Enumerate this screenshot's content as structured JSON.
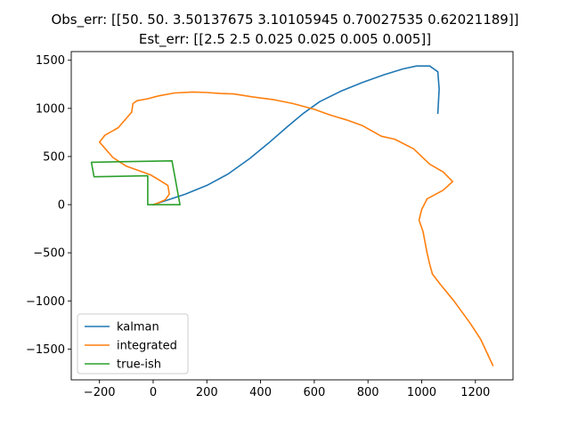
{
  "chart_data": {
    "type": "line",
    "title_lines": [
      "Obs_err: [[50.         50.          3.50137675  3.10105945  0.70027535  0.62021189]]",
      "Est_err: [[2.5   2.5   0.025 0.025 0.005 0.005]]"
    ],
    "xlabel": "",
    "ylabel": "",
    "xlim": [
      -305,
      1340
    ],
    "ylim": [
      -1820,
      1590
    ],
    "x_ticks": [
      -200,
      0,
      200,
      400,
      600,
      800,
      1000,
      1200
    ],
    "y_ticks": [
      -1500,
      -1000,
      -500,
      0,
      500,
      1000,
      1500
    ],
    "legend_position": "lower left",
    "grid": false,
    "series": [
      {
        "name": "kalman",
        "color": "#1f77b4",
        "points": [
          [
            0,
            0
          ],
          [
            50,
            45
          ],
          [
            120,
            110
          ],
          [
            200,
            200
          ],
          [
            280,
            320
          ],
          [
            360,
            480
          ],
          [
            430,
            640
          ],
          [
            500,
            810
          ],
          [
            560,
            950
          ],
          [
            620,
            1070
          ],
          [
            700,
            1180
          ],
          [
            780,
            1270
          ],
          [
            860,
            1350
          ],
          [
            930,
            1410
          ],
          [
            980,
            1440
          ],
          [
            1030,
            1440
          ],
          [
            1060,
            1380
          ],
          [
            1065,
            1200
          ],
          [
            1060,
            950
          ]
        ]
      },
      {
        "name": "integrated",
        "color": "#ff7f0e",
        "points": [
          [
            0,
            0
          ],
          [
            20,
            20
          ],
          [
            45,
            50
          ],
          [
            60,
            110
          ],
          [
            55,
            200
          ],
          [
            20,
            260
          ],
          [
            -10,
            310
          ],
          [
            -40,
            340
          ],
          [
            -100,
            400
          ],
          [
            -150,
            490
          ],
          [
            -200,
            650
          ],
          [
            -180,
            720
          ],
          [
            -130,
            800
          ],
          [
            -80,
            960
          ],
          [
            -75,
            1050
          ],
          [
            -60,
            1080
          ],
          [
            -20,
            1100
          ],
          [
            20,
            1130
          ],
          [
            80,
            1160
          ],
          [
            150,
            1170
          ],
          [
            200,
            1165
          ],
          [
            250,
            1155
          ],
          [
            300,
            1150
          ],
          [
            370,
            1120
          ],
          [
            450,
            1090
          ],
          [
            520,
            1050
          ],
          [
            600,
            990
          ],
          [
            660,
            930
          ],
          [
            720,
            880
          ],
          [
            780,
            820
          ],
          [
            850,
            710
          ],
          [
            900,
            680
          ],
          [
            970,
            580
          ],
          [
            1030,
            420
          ],
          [
            1080,
            340
          ],
          [
            1115,
            240
          ],
          [
            1080,
            150
          ],
          [
            1020,
            60
          ],
          [
            1000,
            -50
          ],
          [
            990,
            -160
          ],
          [
            1005,
            -280
          ],
          [
            1020,
            -500
          ],
          [
            1030,
            -620
          ],
          [
            1040,
            -720
          ],
          [
            1070,
            -830
          ],
          [
            1120,
            -1000
          ],
          [
            1180,
            -1230
          ],
          [
            1220,
            -1400
          ],
          [
            1265,
            -1670
          ]
        ]
      },
      {
        "name": "true-ish",
        "color": "#2ca02c",
        "points": [
          [
            -20,
            0
          ],
          [
            100,
            0
          ],
          [
            70,
            455
          ],
          [
            -230,
            440
          ],
          [
            -220,
            290
          ],
          [
            -20,
            300
          ],
          [
            -20,
            0
          ]
        ]
      }
    ]
  }
}
